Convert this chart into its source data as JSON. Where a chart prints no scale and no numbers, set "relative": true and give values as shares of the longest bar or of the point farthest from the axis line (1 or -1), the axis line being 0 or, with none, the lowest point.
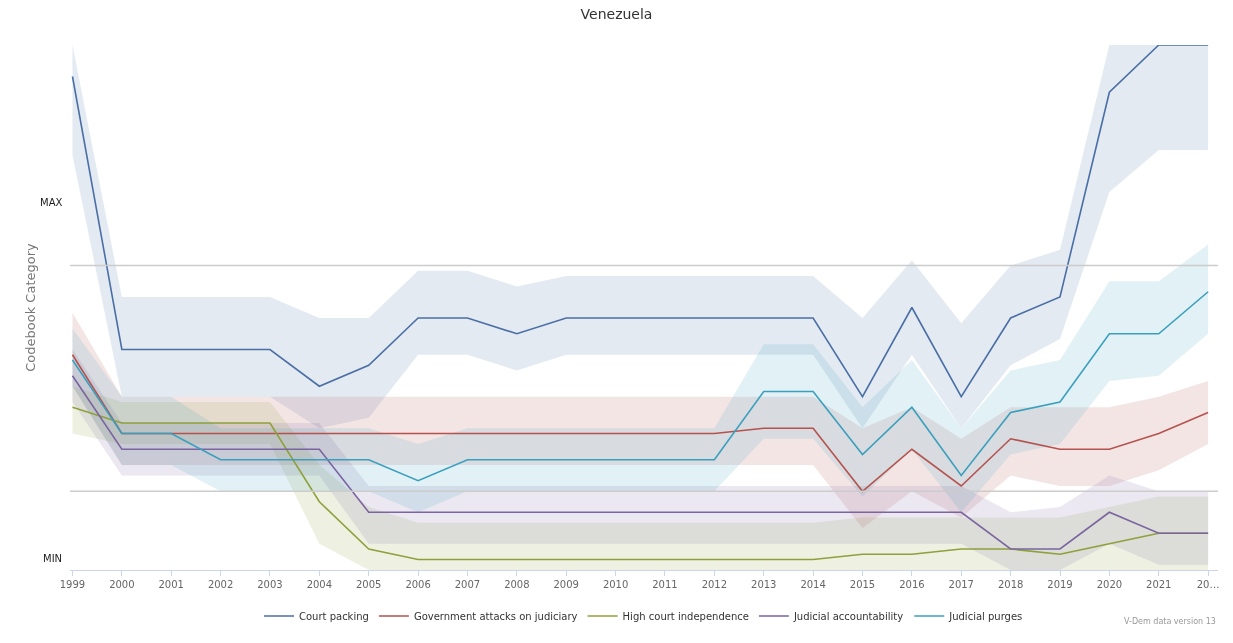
{
  "chart_data": {
    "type": "line",
    "title": "Venezuela",
    "ylabel": "Codebook Category",
    "relative": true,
    "legend": "bottom",
    "grid": false,
    "marker": "none",
    "line_style": "solid",
    "categories": [
      "1999",
      "2000",
      "2001",
      "2002",
      "2003",
      "2004",
      "2005",
      "2006",
      "2007",
      "2008",
      "2009",
      "2010",
      "2011",
      "2012",
      "2013",
      "2014",
      "2015",
      "2016",
      "2017",
      "2018",
      "2019",
      "2020",
      "2021",
      "20…"
    ],
    "series": [
      {
        "name": "Court packing",
        "color": "#4a6fa5",
        "values": [
          0.94,
          0.42,
          0.42,
          0.42,
          0.42,
          0.35,
          0.39,
          0.48,
          0.48,
          0.45,
          0.48,
          0.48,
          0.48,
          0.48,
          0.48,
          0.48,
          0.33,
          0.5,
          0.33,
          0.48,
          0.52,
          0.91,
          1,
          1
        ],
        "upper": [
          1,
          0.52,
          0.52,
          0.52,
          0.52,
          0.48,
          0.48,
          0.57,
          0.57,
          0.54,
          0.56,
          0.56,
          0.56,
          0.56,
          0.56,
          0.56,
          0.48,
          0.59,
          0.47,
          0.58,
          0.61,
          1,
          1,
          1
        ],
        "lower": [
          0.79,
          0.33,
          0.33,
          0.33,
          0.33,
          0.27,
          0.29,
          0.41,
          0.41,
          0.38,
          0.41,
          0.41,
          0.41,
          0.41,
          0.41,
          0.41,
          0.27,
          0.41,
          0.27,
          0.39,
          0.44,
          0.72,
          0.8,
          0.8
        ]
      },
      {
        "name": "Government attacks on judiciary",
        "color": "#b5524e",
        "values": [
          0.41,
          0.26,
          0.26,
          0.26,
          0.26,
          0.26,
          0.26,
          0.26,
          0.26,
          0.26,
          0.26,
          0.26,
          0.26,
          0.26,
          0.27,
          0.27,
          0.15,
          0.23,
          0.16,
          0.25,
          0.23,
          0.23,
          0.26,
          0.3
        ],
        "upper": [
          0.49,
          0.33,
          0.33,
          0.33,
          0.33,
          0.33,
          0.33,
          0.33,
          0.33,
          0.33,
          0.33,
          0.33,
          0.33,
          0.33,
          0.33,
          0.33,
          0.27,
          0.31,
          0.25,
          0.31,
          0.31,
          0.31,
          0.33,
          0.36
        ],
        "lower": [
          0.35,
          0.2,
          0.2,
          0.2,
          0.2,
          0.2,
          0.2,
          0.2,
          0.2,
          0.2,
          0.2,
          0.2,
          0.2,
          0.2,
          0.2,
          0.2,
          0.08,
          0.15,
          0.1,
          0.18,
          0.16,
          0.16,
          0.19,
          0.24
        ]
      },
      {
        "name": "High court independence",
        "color": "#8ea03c",
        "values": [
          0.31,
          0.28,
          0.28,
          0.28,
          0.28,
          0.13,
          0.04,
          0.02,
          0.02,
          0.02,
          0.02,
          0.02,
          0.02,
          0.02,
          0.02,
          0.02,
          0.03,
          0.03,
          0.04,
          0.04,
          0.03,
          0.05,
          0.07,
          0.07
        ],
        "upper": [
          0.35,
          0.32,
          0.32,
          0.32,
          0.32,
          0.2,
          0.12,
          0.09,
          0.09,
          0.09,
          0.09,
          0.09,
          0.09,
          0.09,
          0.09,
          0.09,
          0.1,
          0.1,
          0.1,
          0.1,
          0.1,
          0.12,
          0.14,
          0.14
        ],
        "lower": [
          0.26,
          0.24,
          0.24,
          0.24,
          0.24,
          0.05,
          0,
          0,
          0,
          0,
          0,
          0,
          0,
          0,
          0,
          0,
          0,
          0,
          0,
          0,
          0,
          0,
          0,
          0
        ]
      },
      {
        "name": "Judicial accountability",
        "color": "#7a65a0",
        "values": [
          0.37,
          0.23,
          0.23,
          0.23,
          0.23,
          0.23,
          0.11,
          0.11,
          0.11,
          0.11,
          0.11,
          0.11,
          0.11,
          0.11,
          0.11,
          0.11,
          0.11,
          0.11,
          0.11,
          0.04,
          0.04,
          0.11,
          0.07,
          0.07
        ],
        "upper": [
          0.42,
          0.28,
          0.28,
          0.28,
          0.28,
          0.28,
          0.16,
          0.16,
          0.16,
          0.16,
          0.16,
          0.16,
          0.16,
          0.16,
          0.16,
          0.16,
          0.16,
          0.16,
          0.16,
          0.11,
          0.12,
          0.18,
          0.15,
          0.15
        ],
        "lower": [
          0.32,
          0.18,
          0.18,
          0.18,
          0.18,
          0.18,
          0.05,
          0.05,
          0.05,
          0.05,
          0.05,
          0.05,
          0.05,
          0.05,
          0.05,
          0.05,
          0.05,
          0.05,
          0.05,
          0,
          0,
          0.05,
          0.01,
          0.01
        ]
      },
      {
        "name": "Judicial purges",
        "color": "#3a9fbd",
        "values": [
          0.4,
          0.26,
          0.26,
          0.21,
          0.21,
          0.21,
          0.21,
          0.17,
          0.21,
          0.21,
          0.21,
          0.21,
          0.21,
          0.21,
          0.34,
          0.34,
          0.22,
          0.31,
          0.18,
          0.3,
          0.32,
          0.45,
          0.45,
          0.53
        ],
        "upper": [
          0.46,
          0.33,
          0.33,
          0.27,
          0.27,
          0.27,
          0.27,
          0.24,
          0.27,
          0.27,
          0.27,
          0.27,
          0.27,
          0.27,
          0.43,
          0.43,
          0.31,
          0.4,
          0.27,
          0.38,
          0.4,
          0.55,
          0.55,
          0.62
        ],
        "lower": [
          0.35,
          0.2,
          0.2,
          0.15,
          0.15,
          0.15,
          0.15,
          0.11,
          0.15,
          0.15,
          0.15,
          0.15,
          0.15,
          0.15,
          0.25,
          0.25,
          0.14,
          0.23,
          0.11,
          0.22,
          0.24,
          0.36,
          0.37,
          0.45
        ]
      }
    ],
    "ref_lines": [
      {
        "axis": "y",
        "value": 0.58,
        "color": "#cccccc"
      },
      {
        "axis": "y",
        "value": 0.15,
        "color": "#cccccc"
      }
    ],
    "annotations": [
      "MAX",
      "MIN",
      "V-Dem data version 13"
    ]
  }
}
